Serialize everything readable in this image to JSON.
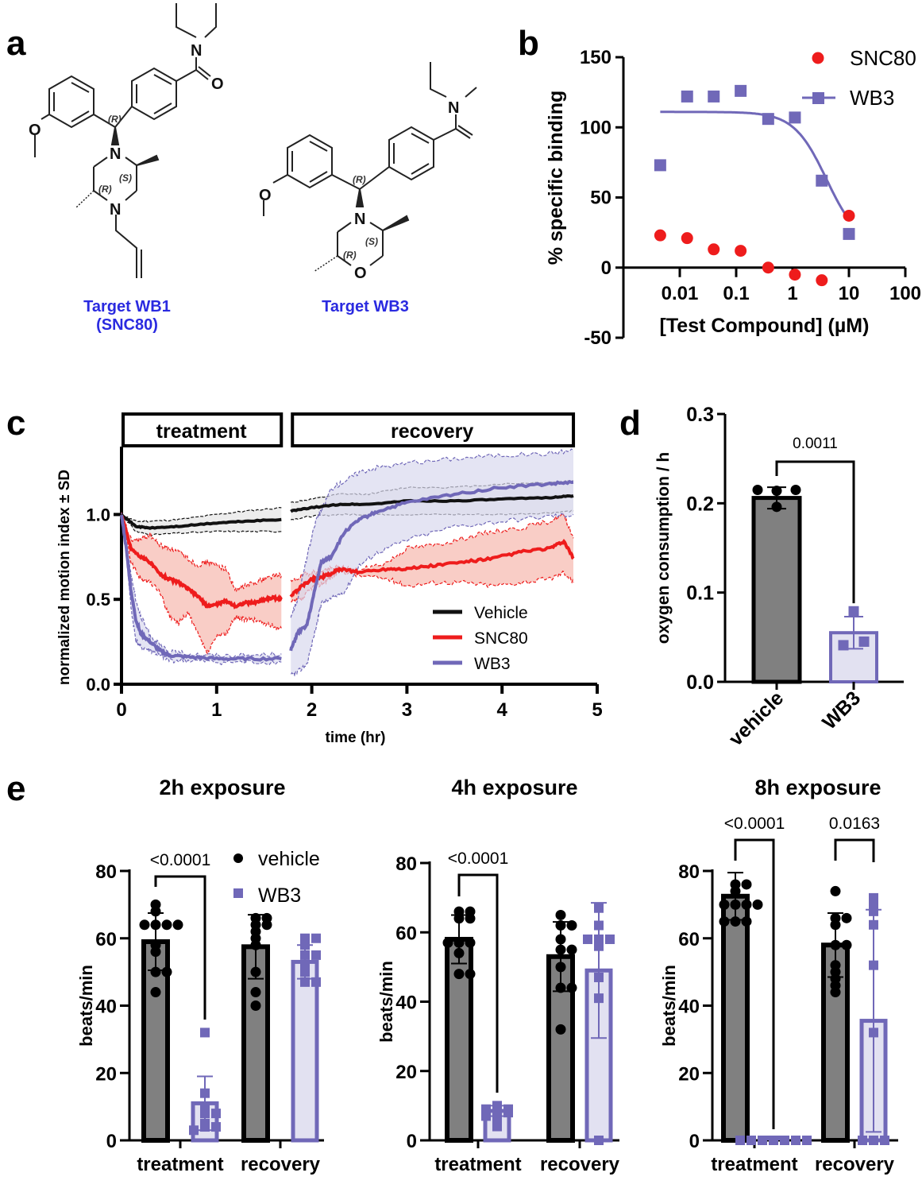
{
  "panels": {
    "a": {
      "letter": "a",
      "molecules": [
        {
          "name": "Target WB1",
          "subname": "(SNC80)",
          "ring": "piperazine",
          "stereo": [
            "(R)",
            "(S)",
            "(R)"
          ],
          "heteroatoms": [
            "N",
            "N",
            "O",
            "N",
            "O"
          ]
        },
        {
          "name": "Target WB3",
          "subname": "",
          "ring": "morpholine",
          "stereo": [
            "(R)",
            "(S)",
            "(R)"
          ],
          "heteroatoms": [
            "N",
            "O",
            "O",
            "N",
            "O"
          ]
        }
      ],
      "label_color": "#2a2ae0"
    },
    "b": {
      "letter": "b"
    },
    "c": {
      "letter": "c"
    },
    "d": {
      "letter": "d"
    },
    "e": {
      "letter": "e"
    }
  },
  "colors": {
    "snc80": "#ee1c1c",
    "wb3": "#7068b8",
    "wb3_fill": "#e2e1f1",
    "vehicle": "#111111",
    "vehicle_bar": "#808080",
    "snc80_band": "#f7b8ae",
    "wb3_band": "#d9d8ee",
    "vehicle_band": "#e6e6e6"
  },
  "chart_data": [
    {
      "id": "b",
      "type": "scatter",
      "title": "",
      "xlabel": "[Test Compound] (µM)",
      "ylabel": "% specific binding",
      "xscale": "log",
      "xlim": [
        0.001,
        100
      ],
      "ylim": [
        -50,
        150
      ],
      "yticks": [
        -50,
        0,
        50,
        100,
        150
      ],
      "xticks": [
        0.01,
        0.1,
        1,
        10,
        100
      ],
      "xtick_labels": [
        "0.01",
        "0.1",
        "1",
        "10",
        "100"
      ],
      "legend_position": "top-right",
      "series": [
        {
          "name": "SNC80",
          "marker": "circle",
          "fit": false,
          "x": [
            0.0045,
            0.0135,
            0.04,
            0.12,
            0.37,
            1.1,
            3.3,
            10
          ],
          "y": [
            23,
            21,
            13,
            12,
            0,
            -5,
            -9,
            37
          ]
        },
        {
          "name": "WB3",
          "marker": "square",
          "fit": true,
          "x": [
            0.0045,
            0.0135,
            0.04,
            0.12,
            0.37,
            1.1,
            3.3,
            10
          ],
          "y": [
            73,
            122,
            122,
            126,
            106,
            107,
            62,
            24
          ],
          "fit_params": {
            "top": 111,
            "bottom": 15,
            "ic50": 4.0,
            "hill": 1.5
          }
        }
      ]
    },
    {
      "id": "c",
      "type": "line",
      "title": "",
      "xlabel": "time (hr)",
      "ylabel": "normalized motion index ± SD",
      "xlim": [
        0,
        5
      ],
      "ylim": [
        0,
        1.4
      ],
      "xticks": [
        0,
        1,
        2,
        3,
        4,
        5
      ],
      "yticks": [
        0.0,
        0.5,
        1.0
      ],
      "ytick_labels": [
        "0.0",
        "0.5",
        "1.0"
      ],
      "phases": [
        {
          "label": "treatment",
          "start": 0,
          "end": 1.68
        },
        {
          "label": "recovery",
          "start": 1.78,
          "end": 4.75
        }
      ],
      "legend_position": "bottom-right",
      "series": [
        {
          "name": "Vehicle",
          "segments": [
            {
              "t": [
                0,
                0.15,
                0.3,
                0.6,
                1.0,
                1.3,
                1.68
              ],
              "mean": [
                1.0,
                0.93,
                0.92,
                0.93,
                0.95,
                0.96,
                0.97
              ],
              "sd": [
                0.0,
                0.03,
                0.04,
                0.04,
                0.05,
                0.06,
                0.07
              ]
            },
            {
              "t": [
                1.78,
                2.0,
                2.3,
                2.6,
                3.0,
                3.5,
                4.0,
                4.5,
                4.75
              ],
              "mean": [
                1.02,
                1.04,
                1.06,
                1.06,
                1.08,
                1.08,
                1.09,
                1.1,
                1.11
              ],
              "sd": [
                0.05,
                0.05,
                0.06,
                0.06,
                0.08,
                0.08,
                0.09,
                0.09,
                0.09
              ]
            }
          ]
        },
        {
          "name": "SNC80",
          "segments": [
            {
              "t": [
                0,
                0.1,
                0.2,
                0.3,
                0.4,
                0.5,
                0.6,
                0.7,
                0.8,
                0.9,
                1.0,
                1.1,
                1.2,
                1.3,
                1.4,
                1.5,
                1.6,
                1.68
              ],
              "mean": [
                1.0,
                0.8,
                0.75,
                0.72,
                0.65,
                0.62,
                0.6,
                0.56,
                0.52,
                0.46,
                0.47,
                0.49,
                0.46,
                0.48,
                0.48,
                0.5,
                0.51,
                0.5
              ],
              "upper": [
                1.0,
                0.85,
                0.85,
                0.88,
                0.82,
                0.8,
                0.78,
                0.74,
                0.7,
                0.72,
                0.7,
                0.68,
                0.55,
                0.58,
                0.6,
                0.62,
                0.64,
                0.64
              ],
              "lower": [
                1.0,
                0.72,
                0.62,
                0.6,
                0.55,
                0.4,
                0.36,
                0.42,
                0.3,
                0.18,
                0.28,
                0.3,
                0.4,
                0.38,
                0.38,
                0.36,
                0.34,
                0.33
              ]
            },
            {
              "t": [
                1.78,
                1.9,
                2.0,
                2.1,
                2.2,
                2.3,
                2.5,
                2.8,
                3.0,
                3.3,
                3.6,
                3.9,
                4.2,
                4.5,
                4.65,
                4.75
              ],
              "mean": [
                0.52,
                0.58,
                0.62,
                0.63,
                0.65,
                0.68,
                0.66,
                0.68,
                0.68,
                0.7,
                0.72,
                0.74,
                0.78,
                0.8,
                0.84,
                0.74
              ],
              "upper": [
                0.6,
                0.64,
                0.66,
                0.67,
                0.68,
                0.69,
                0.67,
                0.72,
                0.8,
                0.82,
                0.86,
                0.9,
                0.92,
                0.96,
                1.0,
                0.86
              ],
              "lower": [
                0.48,
                0.5,
                0.57,
                0.59,
                0.63,
                0.67,
                0.64,
                0.62,
                0.58,
                0.6,
                0.6,
                0.58,
                0.6,
                0.62,
                0.66,
                0.6
              ]
            }
          ]
        },
        {
          "name": "WB3",
          "segments": [
            {
              "t": [
                0,
                0.05,
                0.1,
                0.15,
                0.2,
                0.3,
                0.4,
                0.5,
                0.7,
                1.0,
                1.3,
                1.68
              ],
              "mean": [
                1.0,
                0.8,
                0.55,
                0.38,
                0.3,
                0.25,
                0.2,
                0.17,
                0.16,
                0.15,
                0.15,
                0.15
              ],
              "upper": [
                1.0,
                0.82,
                0.65,
                0.5,
                0.4,
                0.29,
                0.23,
                0.19,
                0.18,
                0.17,
                0.17,
                0.18
              ],
              "lower": [
                1.0,
                0.77,
                0.45,
                0.26,
                0.22,
                0.2,
                0.17,
                0.14,
                0.14,
                0.13,
                0.13,
                0.13
              ]
            },
            {
              "t": [
                1.78,
                1.85,
                1.95,
                2.05,
                2.1,
                2.2,
                2.35,
                2.5,
                2.7,
                3.0,
                3.5,
                4.0,
                4.5,
                4.75
              ],
              "mean": [
                0.2,
                0.3,
                0.35,
                0.6,
                0.72,
                0.75,
                0.9,
                0.97,
                1.02,
                1.07,
                1.12,
                1.16,
                1.18,
                1.19
              ],
              "upper": [
                0.4,
                0.5,
                0.75,
                0.98,
                1.02,
                1.15,
                1.2,
                1.25,
                1.28,
                1.3,
                1.33,
                1.35,
                1.36,
                1.38
              ],
              "lower": [
                0.05,
                0.07,
                0.12,
                0.35,
                0.48,
                0.5,
                0.55,
                0.7,
                0.78,
                0.85,
                0.93,
                0.96,
                0.99,
                1.0
              ]
            }
          ]
        }
      ]
    },
    {
      "id": "d",
      "type": "bar",
      "xlabel": "",
      "ylabel": "oxygen consumption / h",
      "ylim": [
        0,
        0.3
      ],
      "yticks": [
        0.0,
        0.1,
        0.2,
        0.3
      ],
      "ytick_labels": [
        "0.0",
        "0.1",
        "0.2",
        "0.3"
      ],
      "categories": [
        "vehicle",
        "WB3"
      ],
      "values": [
        0.206,
        0.055
      ],
      "sd": [
        0.012,
        0.018
      ],
      "points": [
        [
          0.215,
          0.214,
          0.215,
          0.196
        ],
        [
          0.079,
          0.045,
          0.041
        ]
      ],
      "annotations": [
        {
          "between": [
            0,
            1
          ],
          "text": "0.0011"
        }
      ]
    },
    {
      "id": "e1",
      "type": "bar",
      "title": "2h exposure",
      "ylabel": "beats/min",
      "ylim": [
        0,
        80
      ],
      "yticks": [
        0,
        20,
        40,
        60,
        80
      ],
      "categories": [
        "treatment",
        "recovery"
      ],
      "legend": [
        "vehicle",
        "WB3"
      ],
      "legend_position": "top-right",
      "series": [
        {
          "name": "vehicle",
          "values": [
            59,
            57.5
          ],
          "sd": [
            8.5,
            9.5
          ],
          "points": [
            [
              70,
              68,
              64,
              64,
              64,
              64,
              58,
              56,
              50,
              50,
              44
            ],
            [
              66,
              66,
              64,
              64,
              62,
              60,
              58,
              50,
              44,
              40
            ]
          ]
        },
        {
          "name": "WB3",
          "values": [
            11,
            53
          ],
          "sd": [
            8,
            5
          ],
          "points": [
            [
              32,
              14,
              10,
              8,
              8,
              5,
              4,
              4,
              3
            ],
            [
              60,
              60,
              58,
              55,
              55,
              52,
              50,
              47,
              47
            ]
          ]
        }
      ],
      "annotations": [
        {
          "group": "treatment",
          "text": "<0.0001"
        }
      ]
    },
    {
      "id": "e2",
      "type": "bar",
      "title": "4h exposure",
      "ylabel": "beats/min",
      "ylim": [
        0,
        80
      ],
      "yticks": [
        0,
        20,
        40,
        60,
        80
      ],
      "categories": [
        "treatment",
        "recovery"
      ],
      "series": [
        {
          "name": "vehicle",
          "values": [
            58,
            53
          ],
          "sd": [
            7,
            10
          ],
          "points": [
            [
              66,
              66,
              64,
              64,
              57,
              57,
              57,
              54,
              48,
              48
            ],
            [
              65,
              62,
              62,
              58,
              55,
              55,
              50,
              44,
              44,
              32
            ]
          ]
        },
        {
          "name": "WB3",
          "values": [
            8.5,
            49
          ],
          "sd": [
            1.5,
            19.5
          ],
          "points": [
            [
              10,
              9,
              9,
              8,
              8,
              7,
              6,
              4
            ],
            [
              67,
              62,
              58,
              58,
              58,
              56,
              47,
              41,
              0
            ]
          ]
        }
      ],
      "annotations": [
        {
          "group": "treatment",
          "text": "<0.0001"
        }
      ]
    },
    {
      "id": "e3",
      "type": "bar",
      "title": "8h exposure",
      "ylabel": "beats/min",
      "ylim": [
        0,
        80
      ],
      "yticks": [
        0,
        20,
        40,
        60,
        80
      ],
      "categories": [
        "treatment",
        "recovery"
      ],
      "series": [
        {
          "name": "vehicle",
          "values": [
            72.5,
            58
          ],
          "sd": [
            7,
            9.5
          ],
          "points": [
            [
              76,
              76,
              74,
              70,
              70,
              70,
              70,
              65,
              65,
              65
            ],
            [
              74,
              66,
              66,
              64,
              58,
              58,
              52,
              50,
              48,
              46,
              44
            ]
          ]
        },
        {
          "name": "WB3",
          "values": [
            0,
            35.5
          ],
          "sd": [
            0,
            33
          ],
          "points": [
            [
              0,
              0,
              0,
              0,
              0,
              0,
              0
            ],
            [
              72,
              70,
              68,
              64,
              52,
              32,
              0,
              0,
              0
            ]
          ]
        }
      ],
      "annotations": [
        {
          "group": "treatment",
          "text": "<0.0001"
        },
        {
          "group": "recovery",
          "text": "0.0163"
        }
      ]
    }
  ]
}
